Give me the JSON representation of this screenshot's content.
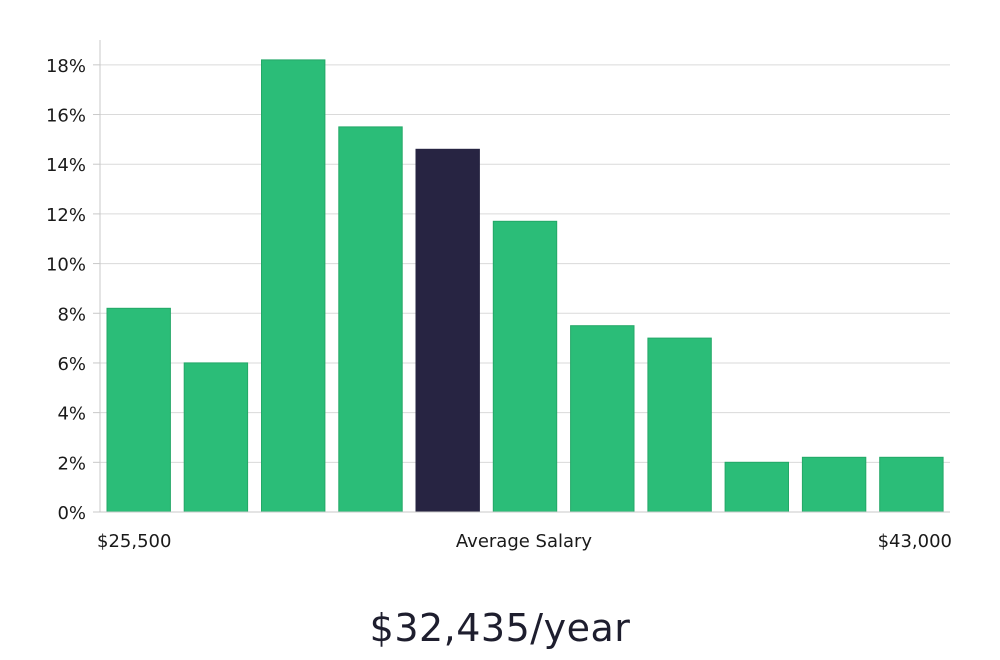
{
  "chart_data": {
    "type": "bar",
    "title": "",
    "xlabel": "Average Salary",
    "ylabel": "",
    "x_start_label": "$25,500",
    "x_center_label": "Average Salary",
    "x_end_label": "$43,000",
    "ylim": [
      0,
      19
    ],
    "y_ticks": [
      0,
      2,
      4,
      6,
      8,
      10,
      12,
      14,
      16,
      18
    ],
    "y_tick_labels": [
      "0%",
      "2%",
      "4%",
      "6%",
      "8%",
      "10%",
      "12%",
      "14%",
      "16%",
      "18%"
    ],
    "values": [
      8.2,
      6.0,
      18.2,
      15.5,
      14.6,
      11.7,
      7.5,
      7.0,
      2.0,
      2.2,
      2.2
    ],
    "highlight_index": 4,
    "grid": true
  },
  "colors": {
    "bar": "#2bbd78",
    "bar_edge": "#23a867",
    "highlight": "#272442",
    "grid": "#dadada",
    "axis": "#c8c8c8"
  },
  "summary": {
    "value": "$32,435/year"
  }
}
